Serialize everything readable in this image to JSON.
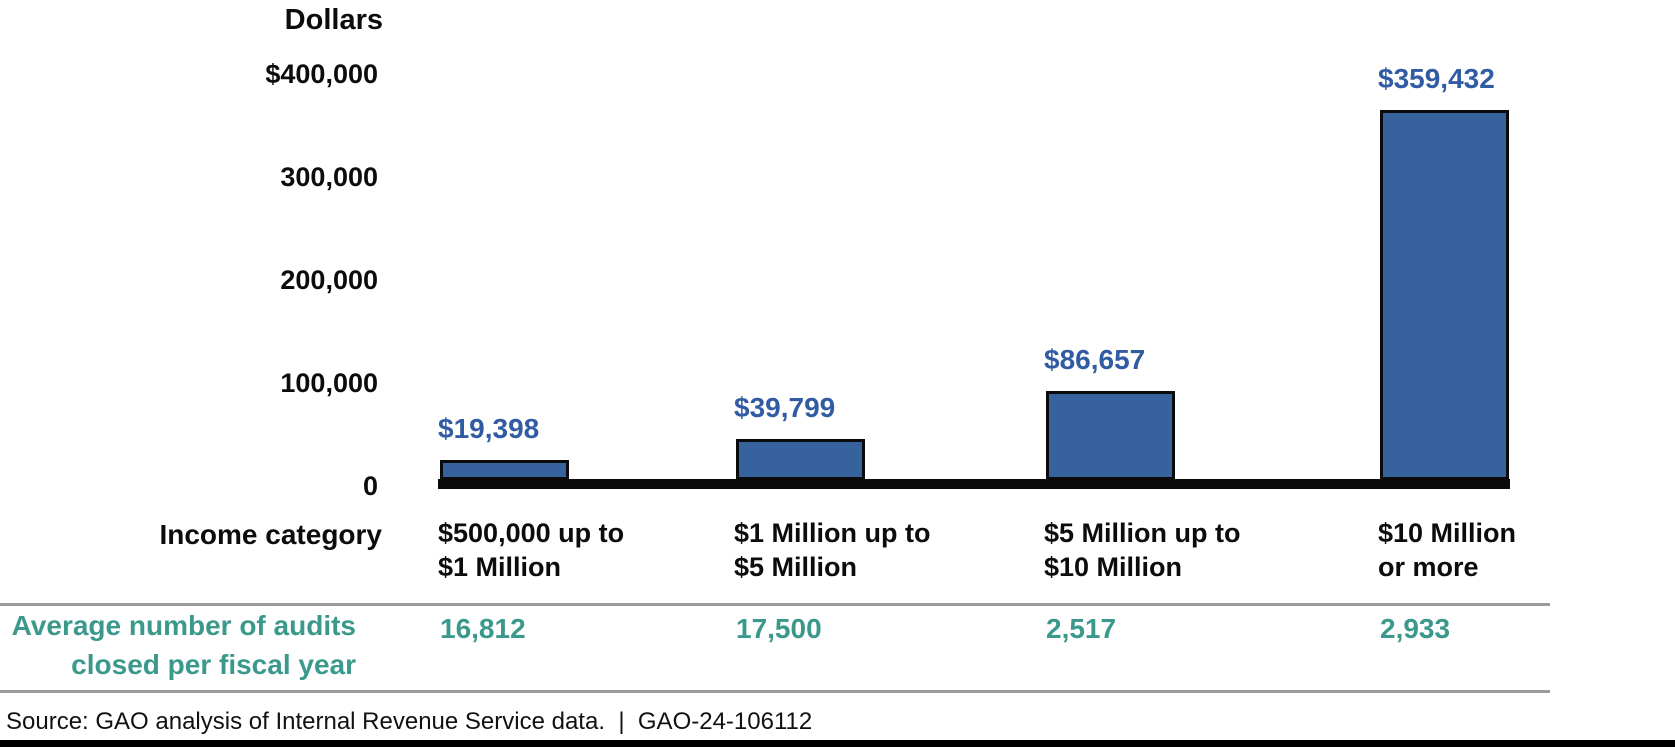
{
  "chart_data": {
    "type": "bar",
    "title": "Dollars",
    "categories": [
      "$500,000 up to\n$1 Million",
      "$1 Million up to\n$5 Million",
      "$5 Million up to\n$10 Million",
      "$10 Million\nor more"
    ],
    "values": [
      19398,
      39799,
      86657,
      359432
    ],
    "value_labels": [
      "$19,398",
      "$39,799",
      "$86,657",
      "$359,432"
    ],
    "row_label": "Income category",
    "ylabel": "Dollars",
    "ylim": [
      0,
      400000
    ],
    "grid": false,
    "y_ticks": [
      {
        "label": "$400,000",
        "value": 400000
      },
      {
        "label": "300,000",
        "value": 300000
      },
      {
        "label": "200,000",
        "value": 200000
      },
      {
        "label": "100,000",
        "value": 100000
      },
      {
        "label": "0",
        "value": 0
      }
    ],
    "audits_row": {
      "label": "Average number of audits\nclosed per fiscal year",
      "values": [
        "16,812",
        "17,500",
        "2,517",
        "2,933"
      ]
    },
    "source": "Source: GAO analysis of Internal Revenue Service data.  |  GAO-24-106112",
    "colors": {
      "bar_fill": "#36629E",
      "bar_border": "#0b0b0b",
      "value_label": "#315CA4",
      "audits": "#3B998C",
      "axis_text": "#0c0c0c",
      "separator": "#9b9b9b"
    }
  }
}
